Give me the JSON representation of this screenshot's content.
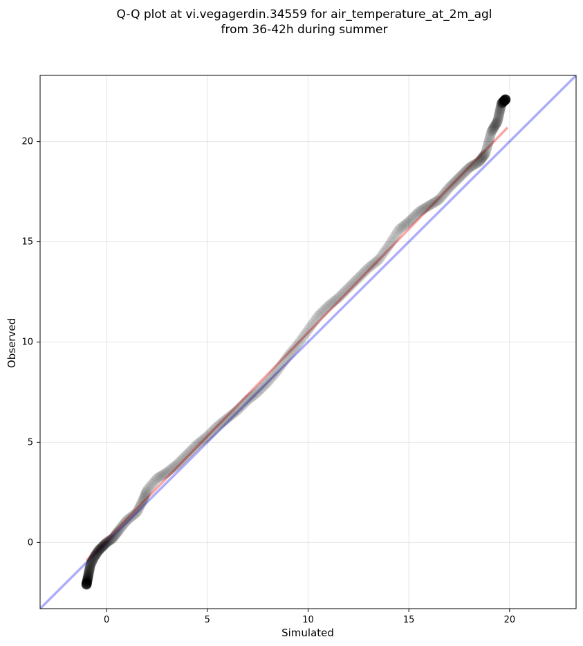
{
  "chart_data": {
    "type": "scatter",
    "title": [
      "Q-Q plot at vi.vegagerdin.34559 for air_temperature_at_2m_agl",
      "from 36-42h during summer"
    ],
    "xlabel": "Simulated",
    "ylabel": "Observed",
    "xlim": [
      -3.3,
      23.3
    ],
    "ylim": [
      -3.3,
      23.3
    ],
    "xticks": [
      0,
      5,
      10,
      15,
      20
    ],
    "yticks": [
      0,
      5,
      10,
      15,
      20
    ],
    "grid": true,
    "quantile_curve": [
      [
        -1.0,
        -2.1
      ],
      [
        -0.9,
        -1.6
      ],
      [
        -0.8,
        -1.1
      ],
      [
        -0.6,
        -0.7
      ],
      [
        -0.4,
        -0.4
      ],
      [
        -0.2,
        -0.2
      ],
      [
        0.0,
        0.0
      ],
      [
        0.3,
        0.2
      ],
      [
        0.6,
        0.6
      ],
      [
        1.0,
        1.1
      ],
      [
        1.5,
        1.5
      ],
      [
        1.8,
        2.1
      ],
      [
        2.0,
        2.6
      ],
      [
        2.5,
        3.2
      ],
      [
        3.0,
        3.5
      ],
      [
        3.5,
        3.9
      ],
      [
        4.0,
        4.4
      ],
      [
        4.5,
        4.9
      ],
      [
        5.0,
        5.3
      ],
      [
        5.5,
        5.8
      ],
      [
        6.0,
        6.2
      ],
      [
        6.5,
        6.6
      ],
      [
        7.0,
        7.1
      ],
      [
        7.5,
        7.5
      ],
      [
        8.0,
        8.0
      ],
      [
        8.5,
        8.6
      ],
      [
        9.0,
        9.3
      ],
      [
        9.5,
        9.9
      ],
      [
        10.0,
        10.6
      ],
      [
        10.5,
        11.3
      ],
      [
        11.0,
        11.8
      ],
      [
        11.5,
        12.2
      ],
      [
        12.0,
        12.7
      ],
      [
        12.5,
        13.2
      ],
      [
        13.0,
        13.7
      ],
      [
        13.5,
        14.1
      ],
      [
        14.0,
        14.8
      ],
      [
        14.5,
        15.6
      ],
      [
        15.0,
        16.0
      ],
      [
        15.5,
        16.5
      ],
      [
        16.0,
        16.8
      ],
      [
        16.5,
        17.1
      ],
      [
        17.0,
        17.7
      ],
      [
        17.5,
        18.2
      ],
      [
        18.0,
        18.7
      ],
      [
        18.5,
        19.0
      ],
      [
        18.8,
        19.4
      ],
      [
        19.1,
        20.5
      ],
      [
        19.4,
        21.0
      ],
      [
        19.6,
        21.9
      ],
      [
        19.8,
        22.1
      ]
    ],
    "reference_line": {
      "name": "",
      "color": "#0000ee",
      "points": [
        [
          -3.3,
          -3.3
        ],
        [
          23.3,
          23.3
        ]
      ]
    },
    "fit_line": {
      "name": "",
      "color": "#ee0000",
      "points": [
        [
          -1.0,
          -0.9
        ],
        [
          19.9,
          20.7
        ]
      ]
    },
    "colors": {
      "points": "#000000",
      "reference": "#0000ee",
      "fit": "#ee0000",
      "grid": "#d9d9d9"
    }
  }
}
